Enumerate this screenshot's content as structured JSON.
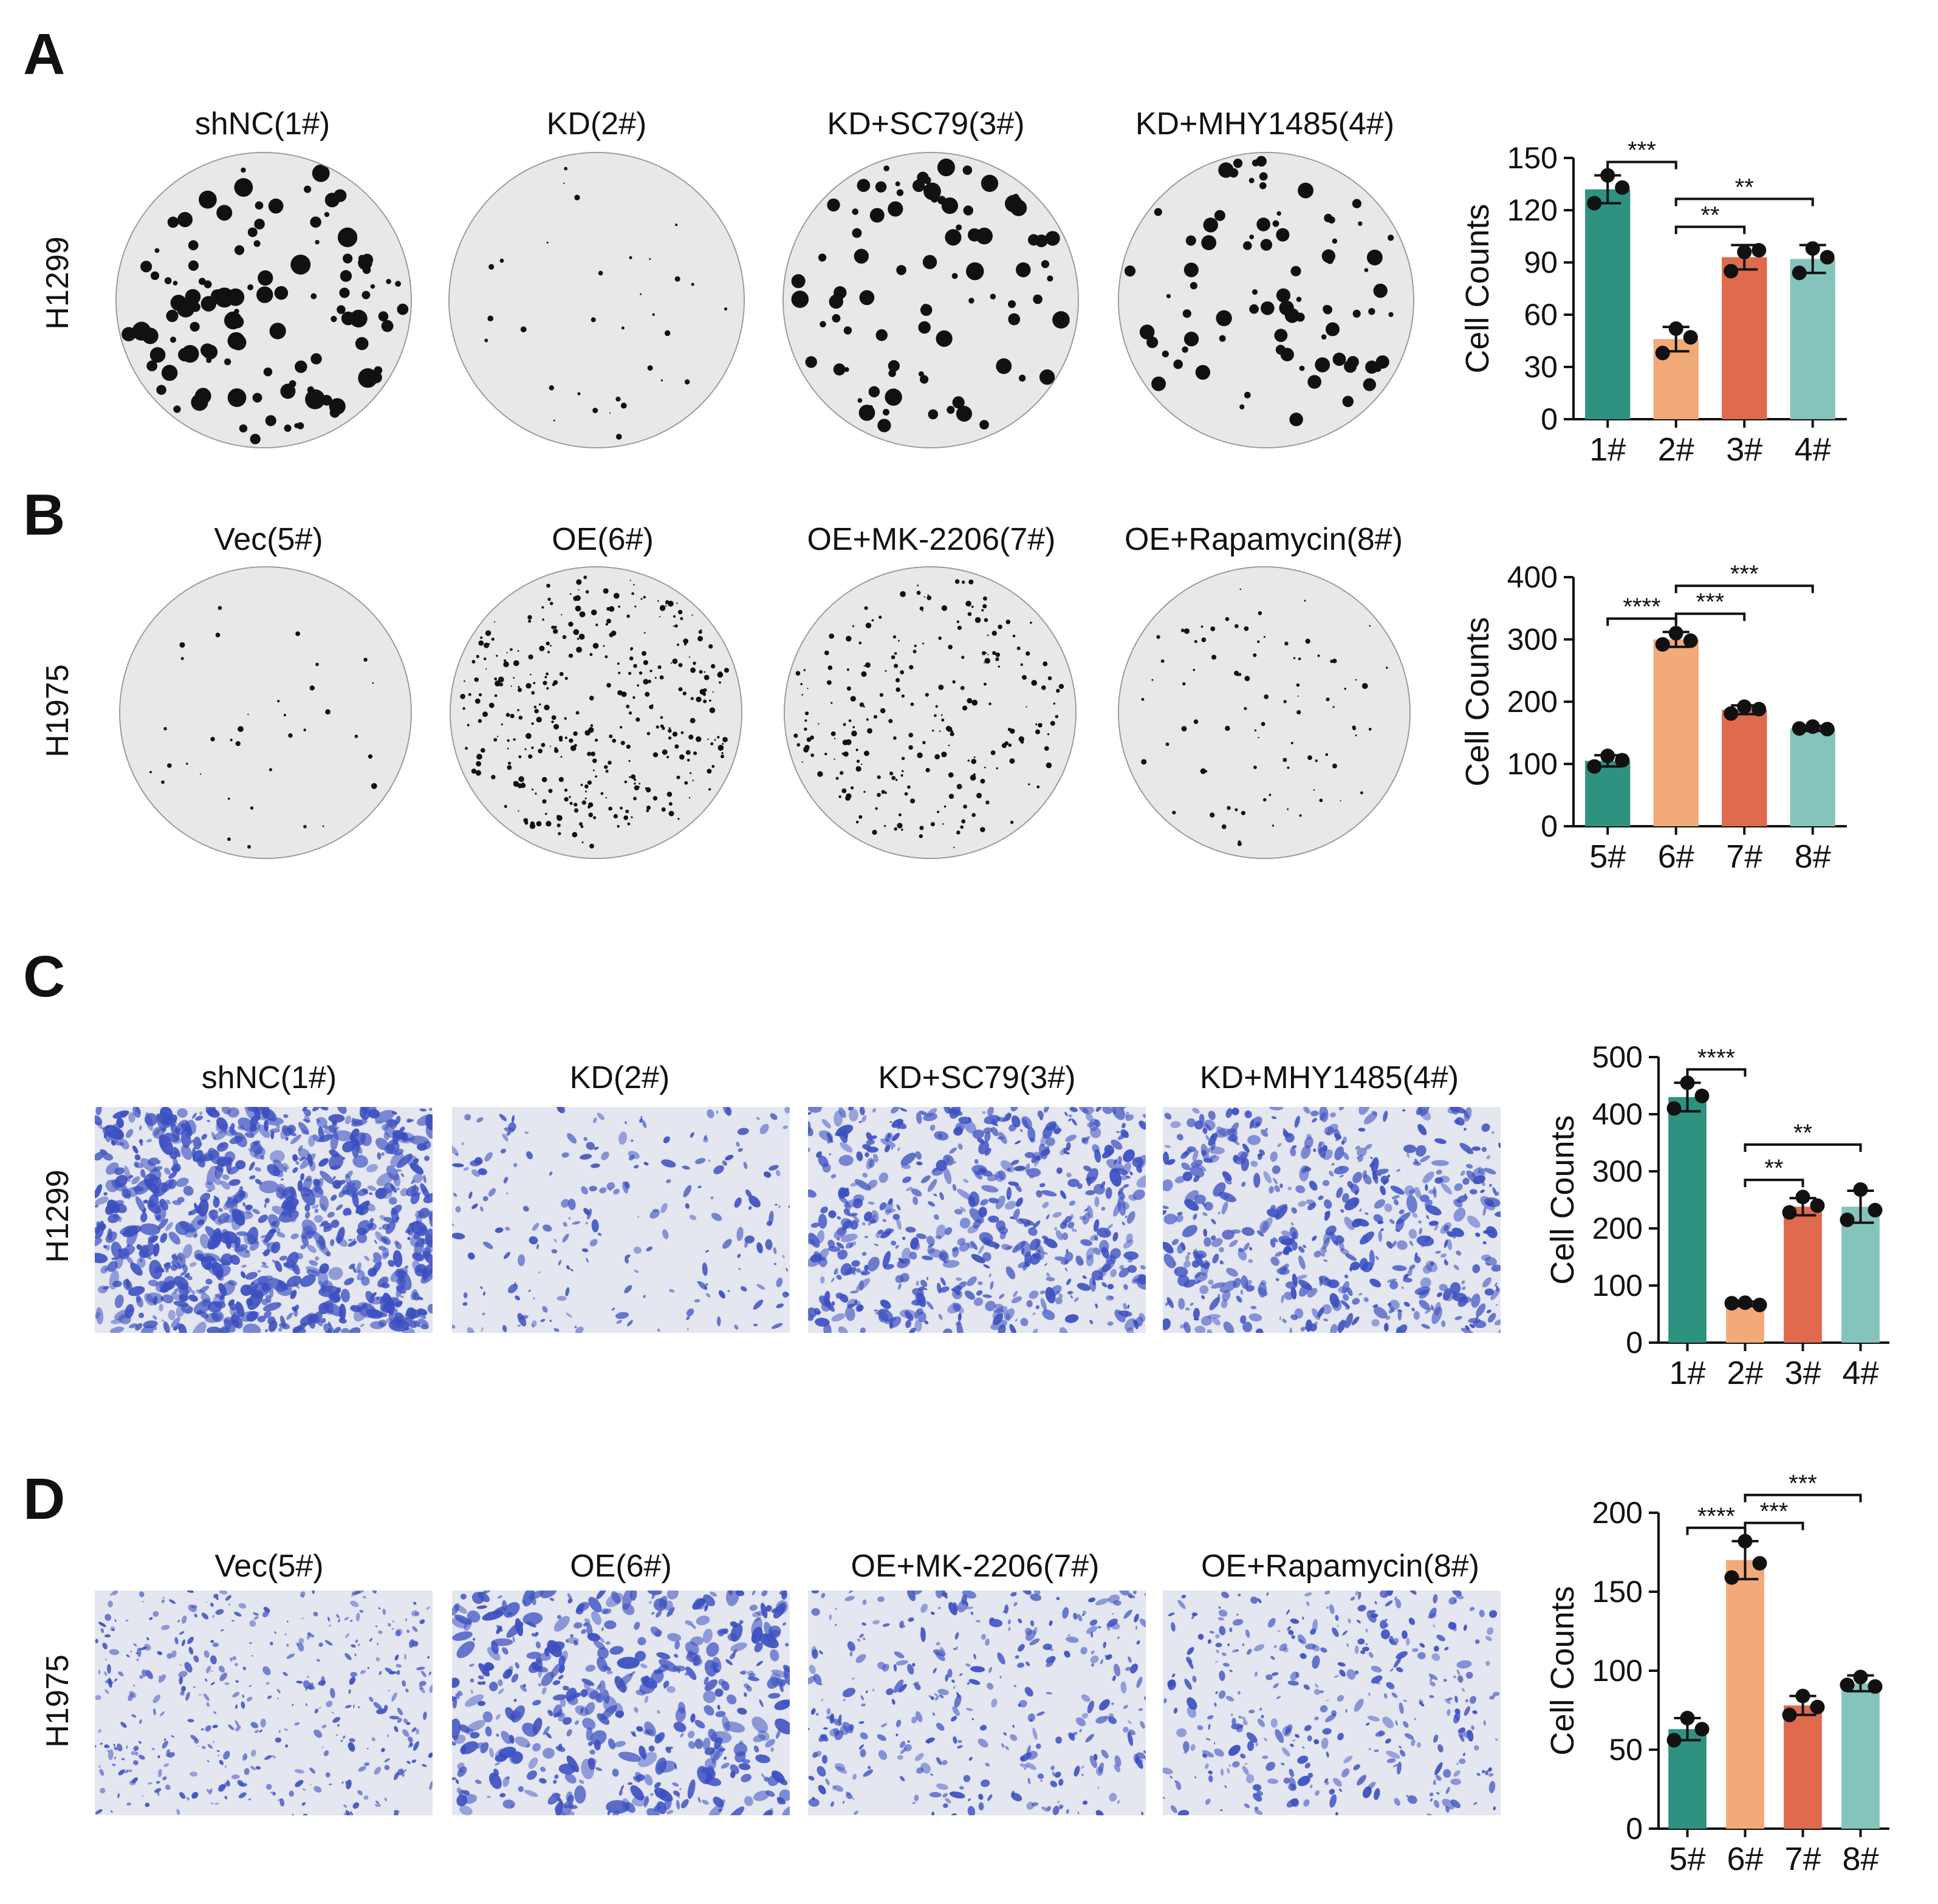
{
  "panels": [
    {
      "letter": "A",
      "row_label": "H1299",
      "image_type": "colony-dish",
      "columns": [
        "shNC(1#)",
        "KD(2#)",
        "KD+SC79(3#)",
        "KD+MHY1485(4#)"
      ]
    },
    {
      "letter": "B",
      "row_label": "H1975",
      "image_type": "colony-dish",
      "columns": [
        "Vec(5#)",
        "OE(6#)",
        "OE+MK-2206(7#)",
        "OE+Rapamycin(8#)"
      ]
    },
    {
      "letter": "C",
      "row_label": "H1299",
      "image_type": "transwell-micrograph",
      "columns": [
        "shNC(1#)",
        "KD(2#)",
        "KD+SC79(3#)",
        "KD+MHY1485(4#)"
      ]
    },
    {
      "letter": "D",
      "row_label": "H1975",
      "image_type": "transwell-micrograph",
      "columns": [
        "Vec(5#)",
        "OE(6#)",
        "OE+MK-2206(7#)",
        "OE+Rapamycin(8#)"
      ]
    }
  ],
  "colors": {
    "group1": "#2e9280",
    "group2": "#f1aa78",
    "group3": "#df6a4e",
    "group4": "#84c4bc",
    "colony": "#111111",
    "dish_bg": "#e8e8e8",
    "stain": "#3b4fc0",
    "micro_bg": "#e4e6f0"
  },
  "chart_data": [
    {
      "type": "bar",
      "panel": "A",
      "categories": [
        "1#",
        "2#",
        "3#",
        "4#"
      ],
      "values": [
        132,
        46,
        93,
        92
      ],
      "errors": [
        8,
        7,
        7,
        8
      ],
      "points": [
        [
          140,
          133,
          124
        ],
        [
          52,
          47,
          38
        ],
        [
          96,
          97,
          85
        ],
        [
          98,
          93,
          84
        ]
      ],
      "ylabel": "Cell Counts",
      "ylim": [
        0,
        150
      ],
      "yticks": [
        0,
        30,
        60,
        90,
        120,
        150
      ],
      "comparisons": [
        {
          "from": 0,
          "to": 1,
          "label": "***"
        },
        {
          "from": 1,
          "to": 2,
          "label": "**"
        },
        {
          "from": 1,
          "to": 3,
          "label": "**"
        }
      ]
    },
    {
      "type": "bar",
      "panel": "B",
      "categories": [
        "5#",
        "6#",
        "7#",
        "8#"
      ],
      "values": [
        105,
        300,
        187,
        157
      ],
      "errors": [
        9,
        12,
        7,
        4
      ],
      "points": [
        [
          113,
          106,
          96
        ],
        [
          310,
          298,
          292
        ],
        [
          192,
          188,
          181
        ],
        [
          160,
          156,
          157
        ]
      ],
      "ylabel": "Cell Counts",
      "ylim": [
        0,
        400
      ],
      "yticks": [
        0,
        100,
        200,
        300,
        400
      ],
      "comparisons": [
        {
          "from": 0,
          "to": 1,
          "label": "****"
        },
        {
          "from": 1,
          "to": 2,
          "label": "***"
        },
        {
          "from": 1,
          "to": 3,
          "label": "***"
        }
      ]
    },
    {
      "type": "bar",
      "panel": "C",
      "categories": [
        "1#",
        "2#",
        "3#",
        "4#"
      ],
      "values": [
        430,
        68,
        238,
        238
      ],
      "errors": [
        25,
        4,
        15,
        28
      ],
      "points": [
        [
          455,
          432,
          410
        ],
        [
          70,
          66,
          69
        ],
        [
          255,
          240,
          228
        ],
        [
          268,
          232,
          215
        ]
      ],
      "ylabel": "Cell Counts",
      "ylim": [
        0,
        500
      ],
      "yticks": [
        0,
        100,
        200,
        300,
        400,
        500
      ],
      "comparisons": [
        {
          "from": 0,
          "to": 1,
          "label": "****"
        },
        {
          "from": 1,
          "to": 2,
          "label": "**"
        },
        {
          "from": 1,
          "to": 3,
          "label": "**"
        }
      ]
    },
    {
      "type": "bar",
      "panel": "D",
      "categories": [
        "5#",
        "6#",
        "7#",
        "8#"
      ],
      "values": [
        63,
        170,
        78,
        92
      ],
      "errors": [
        7,
        12,
        6,
        5
      ],
      "points": [
        [
          70,
          63,
          56
        ],
        [
          182,
          168,
          159
        ],
        [
          84,
          77,
          72
        ],
        [
          96,
          90,
          91
        ]
      ],
      "ylabel": "Cell Counts",
      "ylim": [
        0,
        200
      ],
      "yticks": [
        0,
        50,
        100,
        150,
        200
      ],
      "comparisons": [
        {
          "from": 0,
          "to": 1,
          "label": "****"
        },
        {
          "from": 1,
          "to": 2,
          "label": "***"
        },
        {
          "from": 1,
          "to": 3,
          "label": "***"
        }
      ]
    }
  ]
}
